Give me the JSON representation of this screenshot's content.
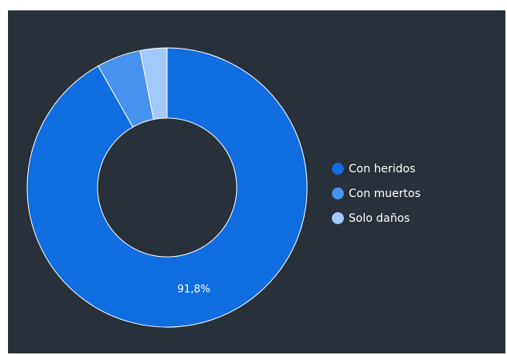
{
  "chart_data": {
    "type": "pie",
    "donut": true,
    "categories": [
      "Con heridos",
      "Con muertos",
      "Solo daños"
    ],
    "values": [
      91.8,
      5.1,
      3.1
    ],
    "colors": [
      "#0f6de0",
      "#4892ef",
      "#a1c9f9"
    ],
    "data_labels": [
      "91,8%",
      "",
      ""
    ],
    "legend": {
      "placement": "right",
      "entries": [
        "Con heridos",
        "Con muertos",
        "Solo daños"
      ]
    },
    "background": "#283039"
  }
}
